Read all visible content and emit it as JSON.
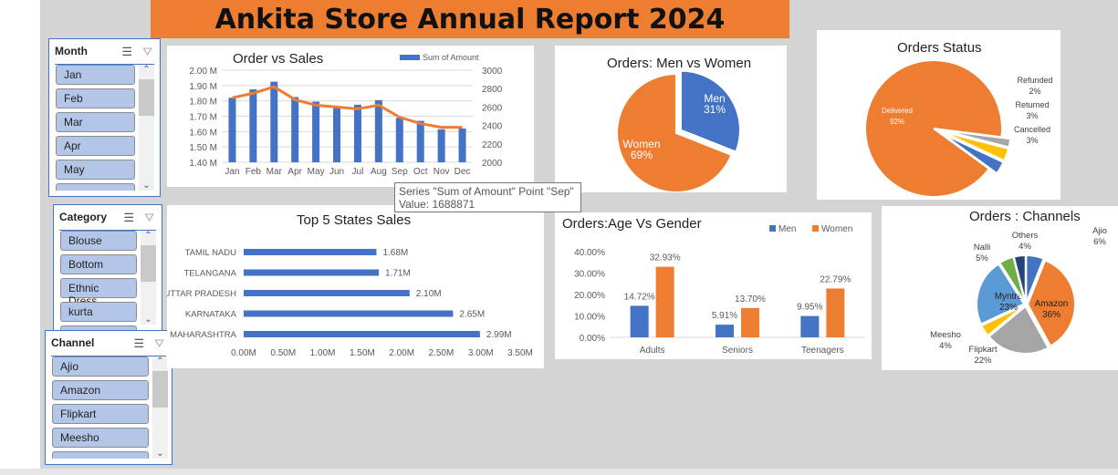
{
  "title": "Ankita Store Annual Report 2024",
  "colors": {
    "blue": "#4472c4",
    "orange": "#ed7d31",
    "gray": "#a5a5a5",
    "yellow": "#ffc000",
    "lightblue": "#5b9bd5",
    "green": "#70ad47",
    "navy": "#264478",
    "header": "#ed7d31"
  },
  "slicers": {
    "month": {
      "label": "Month",
      "items": [
        "Jan",
        "Feb",
        "Mar",
        "Apr",
        "May"
      ]
    },
    "category": {
      "label": "Category",
      "items": [
        "Blouse",
        "Bottom",
        "Ethnic Dress",
        "kurta"
      ]
    },
    "channel": {
      "label": "Channel",
      "items": [
        "Ajio",
        "Amazon",
        "Flipkart",
        "Meesho"
      ]
    }
  },
  "icons": {
    "multiselect": "multi-select-icon",
    "clear_filter": "clear-filter-icon"
  },
  "tooltip": {
    "line1": "Series \"Sum of Amount\" Point \"Sep\"",
    "line2": "Value: 1688871"
  },
  "chart_data": [
    {
      "type": "bar+line",
      "title": "Order vs Sales",
      "categories": [
        "Jan",
        "Feb",
        "Mar",
        "Apr",
        "May",
        "Jun",
        "Jul",
        "Aug",
        "Sep",
        "Oct",
        "Nov",
        "Dec"
      ],
      "series": [
        {
          "name": "Sum of Amount",
          "type": "bar",
          "axis": "left",
          "values": [
            1.82,
            1.875,
            1.925,
            1.825,
            1.795,
            1.755,
            1.775,
            1.805,
            1.689,
            1.67,
            1.615,
            1.62
          ]
        },
        {
          "type": "line",
          "axis": "right",
          "values": [
            2700,
            2750,
            2820,
            2680,
            2620,
            2600,
            2580,
            2620,
            2490,
            2420,
            2380,
            2380
          ]
        }
      ],
      "ylim": [
        1.4,
        2.0
      ],
      "yticks": [
        "1.40 M",
        "1.50 M",
        "1.60 M",
        "1.70 M",
        "1.80 M",
        "1.90 M",
        "2.00 M"
      ],
      "y2lim": [
        2000,
        3000
      ],
      "y2ticks": [
        "2000",
        "2200",
        "2400",
        "2600",
        "2800",
        "3000"
      ],
      "legend": "top-right",
      "grid": true
    },
    {
      "type": "pie",
      "title": "Orders: Men vs Women",
      "slices": [
        {
          "label": "Men",
          "value": 31,
          "pct": "31%"
        },
        {
          "label": "Women",
          "value": 69,
          "pct": "69%"
        }
      ]
    },
    {
      "type": "pie",
      "title": "Orders Status",
      "slices": [
        {
          "label": "Delivered",
          "value": 92,
          "pct": "92%"
        },
        {
          "label": "Refunded",
          "value": 2,
          "pct": "2%"
        },
        {
          "label": "Returned",
          "value": 3,
          "pct": "3%"
        },
        {
          "label": "Cancelled",
          "value": 3,
          "pct": "3%"
        }
      ]
    },
    {
      "type": "bar",
      "orientation": "horizontal",
      "title": "Top 5 States Sales",
      "categories": [
        "TAMIL NADU",
        "TELANGANA",
        "UTTAR PRADESH",
        "KARNATAKA",
        "MAHARASHTRA"
      ],
      "values": [
        1.68,
        1.71,
        2.1,
        2.65,
        2.99
      ],
      "labels": [
        "1.68M",
        "1.71M",
        "2.10M",
        "2.65M",
        "2.99M"
      ],
      "xlim": [
        0,
        3.5
      ],
      "xticks": [
        "0.00M",
        "0.50M",
        "1.00M",
        "1.50M",
        "2.00M",
        "2.50M",
        "3.00M",
        "3.50M"
      ]
    },
    {
      "type": "bar",
      "title": "Orders:Age Vs Gender",
      "categories": [
        "Adults",
        "Seniors",
        "Teenagers"
      ],
      "series": [
        {
          "name": "Men",
          "values": [
            14.72,
            5.91,
            9.95
          ],
          "labels": [
            "14.72%",
            "5.91%",
            "9.95%"
          ]
        },
        {
          "name": "Women",
          "values": [
            32.93,
            13.7,
            22.79
          ],
          "labels": [
            "32.93%",
            "13.70%",
            "22.79%"
          ]
        }
      ],
      "ylim": [
        0,
        40
      ],
      "yticks": [
        "0.00%",
        "10.00%",
        "20.00%",
        "30.00%",
        "40.00%"
      ],
      "legend": "top-right"
    },
    {
      "type": "pie",
      "title": "Orders : Channels",
      "slices": [
        {
          "label": "Ajio",
          "value": 6,
          "pct": "6%"
        },
        {
          "label": "Amazon",
          "value": 36,
          "pct": "36%"
        },
        {
          "label": "Flipkart",
          "value": 22,
          "pct": "22%"
        },
        {
          "label": "Meesho",
          "value": 4,
          "pct": "4%"
        },
        {
          "label": "Myntra",
          "value": 23,
          "pct": "23%"
        },
        {
          "label": "Nalli",
          "value": 5,
          "pct": "5%"
        },
        {
          "label": "Others",
          "value": 4,
          "pct": "4%"
        }
      ]
    }
  ]
}
